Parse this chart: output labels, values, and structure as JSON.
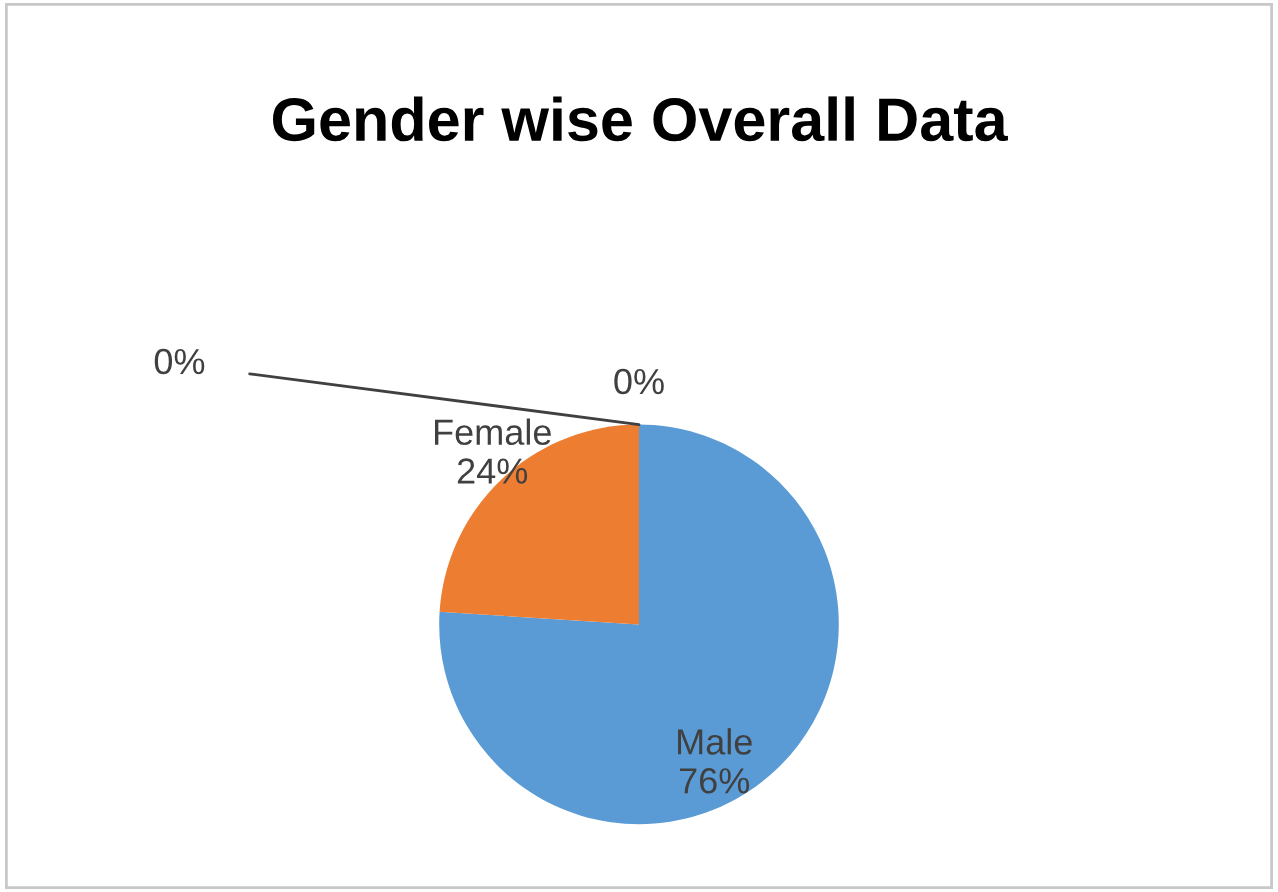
{
  "chart_data": {
    "type": "pie",
    "title": "Gender wise Overall Data",
    "categories": [
      "Male",
      "Female",
      null,
      null
    ],
    "values": [
      76,
      24,
      0,
      0
    ],
    "colors": [
      "#5b9bd5",
      "#ed7d31",
      "#a5a5a5",
      "#ffc000"
    ],
    "value_labels": [
      "76%",
      "24%",
      "0%",
      "0%"
    ],
    "legend": false
  }
}
